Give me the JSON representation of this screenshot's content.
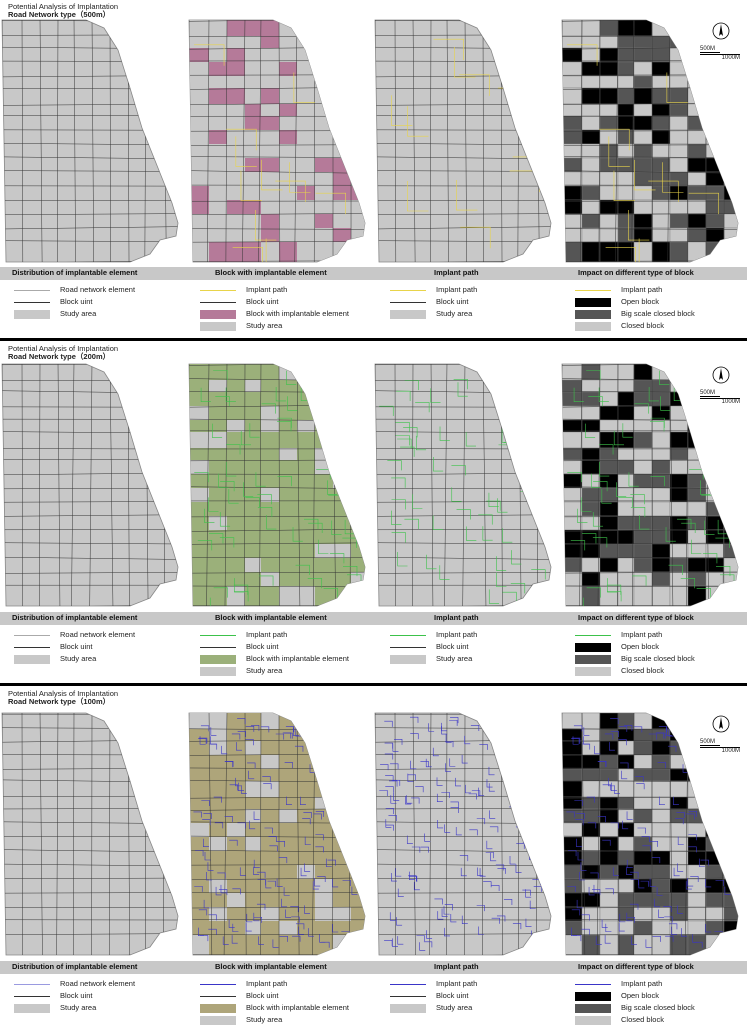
{
  "sections": [
    {
      "title": "Potential Analysis of Implantation",
      "subtitle": "Road Network type（500m）",
      "path_color": "#e8d44a",
      "fill_color": "#b57a99",
      "band_labels": [
        "Distribution of implantable element",
        "Block with implantable element",
        "Implant path",
        "Impact on different type of block"
      ],
      "legends": [
        [
          {
            "kind": "line",
            "color": "#aaaaaa",
            "label": "Road network element"
          },
          {
            "kind": "line",
            "color": "#333333",
            "label": "Block uint"
          },
          {
            "kind": "box",
            "color": "#c8c8c8",
            "label": "Study area"
          }
        ],
        [
          {
            "kind": "line",
            "color": "#e8d44a",
            "label": "Implant path"
          },
          {
            "kind": "line",
            "color": "#333333",
            "label": "Block uint"
          },
          {
            "kind": "box",
            "color": "#b57a99",
            "label": "Block with implantable element"
          },
          {
            "kind": "box",
            "color": "#c8c8c8",
            "label": "Study area"
          }
        ],
        [
          {
            "kind": "line",
            "color": "#e8d44a",
            "label": "Implant path"
          },
          {
            "kind": "line",
            "color": "#333333",
            "label": "Block uint"
          },
          {
            "kind": "box",
            "color": "#c8c8c8",
            "label": "Study area"
          }
        ],
        [
          {
            "kind": "line",
            "color": "#e8d44a",
            "label": "Implant path"
          },
          {
            "kind": "box",
            "color": "#000000",
            "label": "Open block"
          },
          {
            "kind": "box",
            "color": "#555555",
            "label": "Big scale closed block"
          },
          {
            "kind": "box",
            "color": "#c8c8c8",
            "label": "Closed block"
          }
        ]
      ]
    },
    {
      "title": "Potential Analysis of Implantation",
      "subtitle": "Road Network type（200m）",
      "path_color": "#3cc24a",
      "fill_color": "#9bb07a",
      "band_labels": [
        "Distribution of implantable element",
        "Block with implantable element",
        "Implant path",
        "Impact on different type of block"
      ],
      "legends": [
        [
          {
            "kind": "line",
            "color": "#aaaaaa",
            "label": "Road network element"
          },
          {
            "kind": "line",
            "color": "#333333",
            "label": "Block uint"
          },
          {
            "kind": "box",
            "color": "#c8c8c8",
            "label": "Study area"
          }
        ],
        [
          {
            "kind": "line",
            "color": "#3cc24a",
            "label": "Implant path"
          },
          {
            "kind": "line",
            "color": "#333333",
            "label": "Block uint"
          },
          {
            "kind": "box",
            "color": "#9bb07a",
            "label": "Block with implantable element"
          },
          {
            "kind": "box",
            "color": "#c8c8c8",
            "label": "Study area"
          }
        ],
        [
          {
            "kind": "line",
            "color": "#3cc24a",
            "label": "Implant path"
          },
          {
            "kind": "line",
            "color": "#333333",
            "label": "Block uint"
          },
          {
            "kind": "box",
            "color": "#c8c8c8",
            "label": "Study area"
          }
        ],
        [
          {
            "kind": "line",
            "color": "#3cc24a",
            "label": "Implant path"
          },
          {
            "kind": "box",
            "color": "#000000",
            "label": "Open block"
          },
          {
            "kind": "box",
            "color": "#555555",
            "label": "Big scale closed block"
          },
          {
            "kind": "box",
            "color": "#c8c8c8",
            "label": "Closed block"
          }
        ]
      ]
    },
    {
      "title": "Potential Analysis of Implantation",
      "subtitle": "Road Network type（100m）",
      "path_color": "#3a35c8",
      "fill_color": "#aea57a",
      "band_labels": [
        "Distribution of implantable element",
        "Block with implantable element",
        "Implant path",
        "Impact on different type of block"
      ],
      "legends": [
        [
          {
            "kind": "line",
            "color": "#9a9ae0",
            "label": "Road network element"
          },
          {
            "kind": "line",
            "color": "#333333",
            "label": "Block uint"
          },
          {
            "kind": "box",
            "color": "#c8c8c8",
            "label": "Study area"
          }
        ],
        [
          {
            "kind": "line",
            "color": "#3a35c8",
            "label": "Implant path"
          },
          {
            "kind": "line",
            "color": "#333333",
            "label": "Block uint"
          },
          {
            "kind": "box",
            "color": "#aea57a",
            "label": "Block with implantable element"
          },
          {
            "kind": "box",
            "color": "#c8c8c8",
            "label": "Study area"
          }
        ],
        [
          {
            "kind": "line",
            "color": "#3a35c8",
            "label": "Implant path"
          },
          {
            "kind": "line",
            "color": "#333333",
            "label": "Block uint"
          },
          {
            "kind": "box",
            "color": "#c8c8c8",
            "label": "Study area"
          }
        ],
        [
          {
            "kind": "line",
            "color": "#3a35c8",
            "label": "Implant path"
          },
          {
            "kind": "box",
            "color": "#000000",
            "label": "Open block"
          },
          {
            "kind": "box",
            "color": "#555555",
            "label": "Big scale closed block"
          },
          {
            "kind": "box",
            "color": "#c8c8c8",
            "label": "Closed block"
          }
        ]
      ]
    }
  ],
  "scale": {
    "short": "500M",
    "long": "1000M"
  }
}
